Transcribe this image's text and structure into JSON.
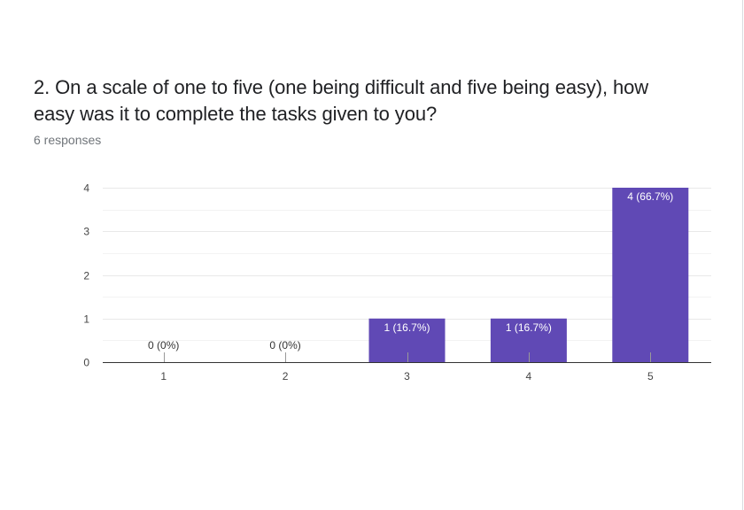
{
  "question": {
    "title": "2. On a scale of one to five (one being difficult and five being easy), how easy was it to complete the tasks given to you?",
    "responses": "6 responses"
  },
  "colors": {
    "bar": "#6049b5",
    "axis": "#333333",
    "grid": "#e8e8e8",
    "tick_text": "#444444",
    "label_dark": "#333333",
    "label_light": "#ffffff"
  },
  "chart_data": {
    "type": "bar",
    "categories": [
      "1",
      "2",
      "3",
      "4",
      "5"
    ],
    "values": [
      0,
      0,
      1,
      1,
      4
    ],
    "data_labels": [
      "0 (0%)",
      "0 (0%)",
      "1 (16.7%)",
      "1 (16.7%)",
      "4 (66.7%)"
    ],
    "ylim": [
      0,
      4
    ],
    "yticks": [
      0,
      1,
      2,
      3,
      4
    ],
    "grid": true
  }
}
